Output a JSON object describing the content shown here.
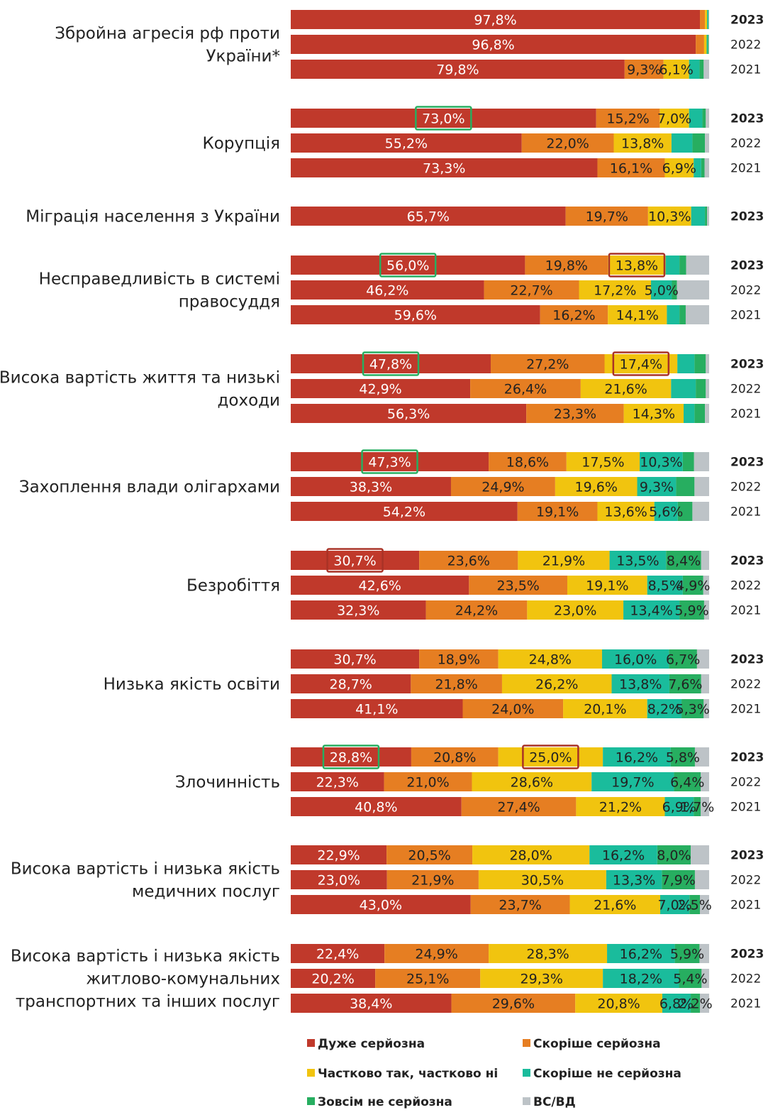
{
  "chart_data": {
    "type": "bar",
    "orientation": "horizontal",
    "stacked": true,
    "xlim": [
      0,
      100
    ],
    "grid": false,
    "legend_position": "bottom",
    "series": [
      {
        "name": "Дуже серйозна",
        "color": "#C0392B"
      },
      {
        "name": "Скоріше серйозна",
        "color": "#E67E22"
      },
      {
        "name": "Частково так, частково ні",
        "color": "#F1C40F"
      },
      {
        "name": "Скоріше не серйозна",
        "color": "#1ABC9C"
      },
      {
        "name": "Зовсім не серйозна",
        "color": "#27AE60"
      },
      {
        "name": "ВС/ВД",
        "color": "#BDC3C7"
      }
    ],
    "groups": [
      {
        "label": [
          "Збройна агресія рф проти",
          "України*"
        ],
        "rows": [
          {
            "year": "2023",
            "values": [
              97.8,
              1.2,
              0.5,
              0.3,
              0.1,
              0.1
            ],
            "labels": [
              "97,8%",
              "",
              "",
              "",
              "",
              ""
            ]
          },
          {
            "year": "2022",
            "values": [
              96.8,
              2.0,
              0.6,
              0.3,
              0.2,
              0.1
            ],
            "labels": [
              "96,8%",
              "",
              "",
              "",
              "",
              ""
            ]
          },
          {
            "year": "2021",
            "values": [
              79.8,
              9.3,
              6.1,
              2.5,
              1.0,
              1.3
            ],
            "labels": [
              "79,8%",
              "9,3%",
              "6,1%",
              "",
              "",
              ""
            ]
          }
        ]
      },
      {
        "label": [
          "Корупція"
        ],
        "rows": [
          {
            "year": "2023",
            "values": [
              73.0,
              15.2,
              7.0,
              3.2,
              0.8,
              0.8
            ],
            "labels": [
              "73,0%",
              "15,2%",
              "7,0%",
              "",
              "",
              ""
            ]
          },
          {
            "year": "2022",
            "values": [
              55.2,
              22.0,
              13.8,
              5.0,
              3.0,
              1.0
            ],
            "labels": [
              "55,2%",
              "22,0%",
              "13,8%",
              "",
              "",
              ""
            ]
          },
          {
            "year": "2021",
            "values": [
              73.3,
              16.1,
              6.9,
              1.8,
              0.8,
              1.1
            ],
            "labels": [
              "73,3%",
              "16,1%",
              "6,9%",
              "",
              "",
              ""
            ]
          }
        ]
      },
      {
        "label": [
          "Міграція населення з України"
        ],
        "rows": [
          {
            "year": "2023",
            "values": [
              65.7,
              19.7,
              10.3,
              3.3,
              0.5,
              0.5
            ],
            "labels": [
              "65,7%",
              "19,7%",
              "10,3%",
              "",
              "",
              ""
            ]
          }
        ]
      },
      {
        "label": [
          "Несправедливість в системі",
          "правосуддя"
        ],
        "rows": [
          {
            "year": "2023",
            "values": [
              56.0,
              19.8,
              13.8,
              3.3,
              1.6,
              5.5
            ],
            "labels": [
              "56,0%",
              "19,8%",
              "13,8%",
              "",
              "",
              ""
            ]
          },
          {
            "year": "2022",
            "values": [
              46.2,
              22.7,
              17.2,
              5.0,
              1.2,
              7.7
            ],
            "labels": [
              "46,2%",
              "22,7%",
              "17,2%",
              "5,0%",
              "",
              ""
            ]
          },
          {
            "year": "2021",
            "values": [
              59.6,
              16.2,
              14.1,
              3.0,
              1.5,
              5.6
            ],
            "labels": [
              "59,6%",
              "16,2%",
              "14,1%",
              "",
              "",
              ""
            ]
          }
        ]
      },
      {
        "label": [
          "Висока вартість життя та низькі",
          "доходи"
        ],
        "rows": [
          {
            "year": "2023",
            "values": [
              47.8,
              27.2,
              17.4,
              4.1,
              2.7,
              0.8
            ],
            "labels": [
              "47,8%",
              "27,2%",
              "17,4%",
              "",
              "",
              ""
            ]
          },
          {
            "year": "2022",
            "values": [
              42.9,
              26.4,
              21.6,
              5.9,
              2.4,
              0.8
            ],
            "labels": [
              "42,9%",
              "26,4%",
              "21,6%",
              "",
              "",
              ""
            ]
          },
          {
            "year": "2021",
            "values": [
              56.3,
              23.3,
              14.3,
              2.6,
              2.5,
              1.0
            ],
            "labels": [
              "56,3%",
              "23,3%",
              "14,3%",
              "",
              "",
              ""
            ]
          }
        ]
      },
      {
        "label": [
          "Захоплення влади олігархами"
        ],
        "rows": [
          {
            "year": "2023",
            "values": [
              47.3,
              18.6,
              17.5,
              10.3,
              2.7,
              3.6
            ],
            "labels": [
              "47,3%",
              "18,6%",
              "17,5%",
              "10,3%",
              "",
              ""
            ]
          },
          {
            "year": "2022",
            "values": [
              38.3,
              24.9,
              19.6,
              9.3,
              4.4,
              3.5
            ],
            "labels": [
              "38,3%",
              "24,9%",
              "19,6%",
              "9,3%",
              "",
              ""
            ]
          },
          {
            "year": "2021",
            "values": [
              54.2,
              19.1,
              13.6,
              5.6,
              3.5,
              4.0
            ],
            "labels": [
              "54,2%",
              "19,1%",
              "13,6%",
              "5,6%",
              "",
              ""
            ]
          }
        ]
      },
      {
        "label": [
          "Безробіття"
        ],
        "rows": [
          {
            "year": "2023",
            "values": [
              30.7,
              23.6,
              21.9,
              13.5,
              8.4,
              1.9
            ],
            "labels": [
              "30,7%",
              "23,6%",
              "21,9%",
              "13,5%",
              "8,4%",
              ""
            ]
          },
          {
            "year": "2022",
            "values": [
              42.6,
              23.5,
              19.1,
              8.5,
              4.9,
              1.4
            ],
            "labels": [
              "42,6%",
              "23,5%",
              "19,1%",
              "8,5%",
              "4,9%",
              ""
            ]
          },
          {
            "year": "2021",
            "values": [
              32.3,
              24.2,
              23.0,
              13.4,
              5.9,
              1.2
            ],
            "labels": [
              "32,3%",
              "24,2%",
              "23,0%",
              "13,4%",
              "5,9%",
              ""
            ]
          }
        ]
      },
      {
        "label": [
          "Низька якість освіти"
        ],
        "rows": [
          {
            "year": "2023",
            "values": [
              30.7,
              18.9,
              24.8,
              16.0,
              6.7,
              2.9
            ],
            "labels": [
              "30,7%",
              "18,9%",
              "24,8%",
              "16,0%",
              "6,7%",
              ""
            ]
          },
          {
            "year": "2022",
            "values": [
              28.7,
              21.8,
              26.2,
              13.8,
              7.6,
              1.9
            ],
            "labels": [
              "28,7%",
              "21,8%",
              "26,2%",
              "13,8%",
              "7,6%",
              ""
            ]
          },
          {
            "year": "2021",
            "values": [
              41.1,
              24.0,
              20.1,
              8.2,
              5.3,
              1.3
            ],
            "labels": [
              "41,1%",
              "24,0%",
              "20,1%",
              "8,2%",
              "5,3%",
              ""
            ]
          }
        ]
      },
      {
        "label": [
          "Злочинність"
        ],
        "rows": [
          {
            "year": "2023",
            "values": [
              28.8,
              20.8,
              25.0,
              16.2,
              5.8,
              3.4
            ],
            "labels": [
              "28,8%",
              "20,8%",
              "25,0%",
              "16,2%",
              "5,8%",
              ""
            ]
          },
          {
            "year": "2022",
            "values": [
              22.3,
              21.0,
              28.6,
              19.7,
              6.4,
              2.0
            ],
            "labels": [
              "22,3%",
              "21,0%",
              "28,6%",
              "19,7%",
              "6,4%",
              ""
            ]
          },
          {
            "year": "2021",
            "values": [
              40.8,
              27.4,
              21.2,
              6.9,
              1.7,
              2.0
            ],
            "labels": [
              "40,8%",
              "27,4%",
              "21,2%",
              "6,9%",
              "1,7%",
              ""
            ]
          }
        ]
      },
      {
        "label": [
          "Висока вартість і низька якість",
          "медичних послуг"
        ],
        "rows": [
          {
            "year": "2023",
            "values": [
              22.9,
              20.5,
              28.0,
              16.2,
              8.0,
              4.4
            ],
            "labels": [
              "22,9%",
              "20,5%",
              "28,0%",
              "16,2%",
              "8,0%",
              ""
            ]
          },
          {
            "year": "2022",
            "values": [
              23.0,
              21.9,
              30.5,
              13.3,
              7.9,
              3.4
            ],
            "labels": [
              "23,0%",
              "21,9%",
              "30,5%",
              "13,3%",
              "7,9%",
              ""
            ]
          },
          {
            "year": "2021",
            "values": [
              43.0,
              23.7,
              21.6,
              7.0,
              2.5,
              2.2
            ],
            "labels": [
              "43,0%",
              "23,7%",
              "21,6%",
              "7,0%",
              "2,5%",
              ""
            ]
          }
        ]
      },
      {
        "label": [
          "Висока вартість і низька якість",
          "житлово-комунальних",
          "транспортних та інших послуг"
        ],
        "rows": [
          {
            "year": "2023",
            "values": [
              22.4,
              24.9,
              28.3,
              16.2,
              5.9,
              2.3
            ],
            "labels": [
              "22,4%",
              "24,9%",
              "28,3%",
              "16,2%",
              "5,9%",
              ""
            ]
          },
          {
            "year": "2022",
            "values": [
              20.2,
              25.1,
              29.3,
              18.2,
              5.4,
              1.8
            ],
            "labels": [
              "20,2%",
              "25,1%",
              "29,3%",
              "18,2%",
              "5,4%",
              ""
            ]
          },
          {
            "year": "2021",
            "values": [
              38.4,
              29.6,
              20.8,
              6.8,
              2.2,
              2.2
            ],
            "labels": [
              "38,4%",
              "29,6%",
              "20,8%",
              "6,8%",
              "2,2%",
              ""
            ]
          }
        ]
      }
    ],
    "highlights": [
      {
        "group": 1,
        "row": 0,
        "segment": 0,
        "color": "#27AE60"
      },
      {
        "group": 3,
        "row": 0,
        "segment": 0,
        "color": "#27AE60"
      },
      {
        "group": 3,
        "row": 0,
        "segment": 2,
        "color": "#A93226"
      },
      {
        "group": 4,
        "row": 0,
        "segment": 0,
        "color": "#27AE60"
      },
      {
        "group": 4,
        "row": 0,
        "segment": 2,
        "color": "#A93226"
      },
      {
        "group": 5,
        "row": 0,
        "segment": 0,
        "color": "#27AE60"
      },
      {
        "group": 6,
        "row": 0,
        "segment": 0,
        "color": "#A93226"
      },
      {
        "group": 8,
        "row": 0,
        "segment": 0,
        "color": "#27AE60"
      },
      {
        "group": 8,
        "row": 0,
        "segment": 2,
        "color": "#A93226"
      }
    ]
  }
}
